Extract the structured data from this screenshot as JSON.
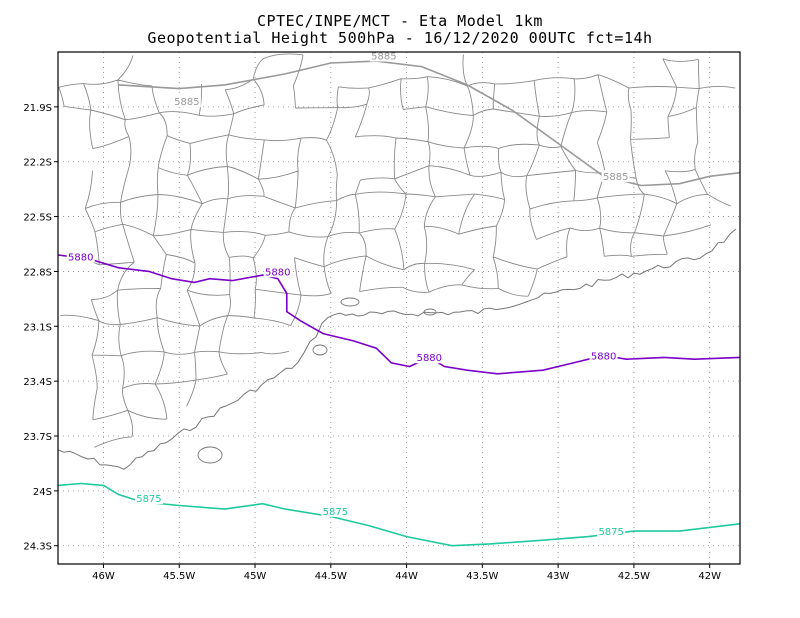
{
  "title": {
    "line1": "CPTEC/INPE/MCT -  Eta Model 1km",
    "line2": "Geopotential Height 500hPa - 16/12/2020 00UTC fct=14h"
  },
  "axes": {
    "y_ticks": [
      "21.9S",
      "22.2S",
      "22.5S",
      "22.8S",
      "23.1S",
      "23.4S",
      "23.7S",
      "24S",
      "24.3S"
    ],
    "y_values": [
      -21.9,
      -22.2,
      -22.5,
      -22.8,
      -23.1,
      -23.4,
      -23.7,
      -24.0,
      -24.3
    ],
    "x_ticks": [
      "46W",
      "45.5W",
      "45W",
      "44.5W",
      "44W",
      "43.5W",
      "43W",
      "42.5W",
      "42W"
    ],
    "x_values": [
      -46.0,
      -45.5,
      -45.0,
      -44.5,
      -44.0,
      -43.5,
      -43.0,
      -42.5,
      -42.0
    ],
    "lon_range": [
      -46.3,
      -41.8
    ],
    "lat_range": [
      -24.4,
      -21.6
    ]
  },
  "contours": [
    {
      "level": "5885",
      "color": "#999999",
      "points": [
        [
          -45.9,
          -21.78
        ],
        [
          -45.5,
          -21.8
        ],
        [
          -45.2,
          -21.78
        ],
        [
          -44.8,
          -21.72
        ],
        [
          -44.5,
          -21.66
        ],
        [
          -44.2,
          -21.65
        ],
        [
          -43.9,
          -21.68
        ],
        [
          -43.6,
          -21.78
        ],
        [
          -43.3,
          -21.92
        ],
        [
          -43.0,
          -22.1
        ],
        [
          -42.7,
          -22.28
        ],
        [
          -42.45,
          -22.33
        ],
        [
          -42.2,
          -22.32
        ],
        [
          -42.0,
          -22.28
        ],
        [
          -41.8,
          -22.26
        ]
      ],
      "labels": [
        [
          -45.45,
          -21.88
        ],
        [
          -44.15,
          -21.63
        ],
        [
          -42.62,
          -22.29
        ]
      ]
    },
    {
      "level": "5880",
      "color": "#7b00c8",
      "points": [
        [
          -46.3,
          -22.71
        ],
        [
          -46.1,
          -22.73
        ],
        [
          -45.9,
          -22.78
        ],
        [
          -45.7,
          -22.8
        ],
        [
          -45.55,
          -22.84
        ],
        [
          -45.4,
          -22.86
        ],
        [
          -45.3,
          -22.84
        ],
        [
          -45.15,
          -22.85
        ],
        [
          -44.95,
          -22.82
        ],
        [
          -44.85,
          -22.84
        ],
        [
          -44.79,
          -22.92
        ],
        [
          -44.79,
          -23.02
        ],
        [
          -44.7,
          -23.07
        ],
        [
          -44.55,
          -23.14
        ],
        [
          -44.35,
          -23.18
        ],
        [
          -44.2,
          -23.22
        ],
        [
          -44.1,
          -23.3
        ],
        [
          -43.98,
          -23.32
        ],
        [
          -43.85,
          -23.27
        ],
        [
          -43.75,
          -23.32
        ],
        [
          -43.6,
          -23.34
        ],
        [
          -43.4,
          -23.36
        ],
        [
          -43.1,
          -23.34
        ],
        [
          -42.9,
          -23.3
        ],
        [
          -42.7,
          -23.26
        ],
        [
          -42.55,
          -23.28
        ],
        [
          -42.3,
          -23.27
        ],
        [
          -42.1,
          -23.28
        ],
        [
          -41.8,
          -23.27
        ]
      ],
      "labels": [
        [
          -46.15,
          -22.73
        ],
        [
          -44.85,
          -22.81
        ],
        [
          -43.85,
          -23.28
        ],
        [
          -42.7,
          -23.27
        ]
      ]
    },
    {
      "level": "5875",
      "color": "#1fc9a0",
      "points": [
        [
          -46.3,
          -23.97
        ],
        [
          -46.15,
          -23.96
        ],
        [
          -46.0,
          -23.97
        ],
        [
          -45.9,
          -24.02
        ],
        [
          -45.75,
          -24.06
        ],
        [
          -45.5,
          -24.08
        ],
        [
          -45.2,
          -24.1
        ],
        [
          -44.95,
          -24.07
        ],
        [
          -44.8,
          -24.1
        ],
        [
          -44.5,
          -24.14
        ],
        [
          -44.25,
          -24.19
        ],
        [
          -44.0,
          -24.25
        ],
        [
          -43.7,
          -24.3
        ],
        [
          -43.45,
          -24.29
        ],
        [
          -43.1,
          -24.27
        ],
        [
          -42.8,
          -24.25
        ],
        [
          -42.5,
          -24.22
        ],
        [
          -42.2,
          -24.22
        ],
        [
          -41.8,
          -24.18
        ]
      ],
      "labels": [
        [
          -45.7,
          -24.05
        ],
        [
          -44.47,
          -24.12
        ],
        [
          -42.65,
          -24.23
        ]
      ]
    }
  ]
}
